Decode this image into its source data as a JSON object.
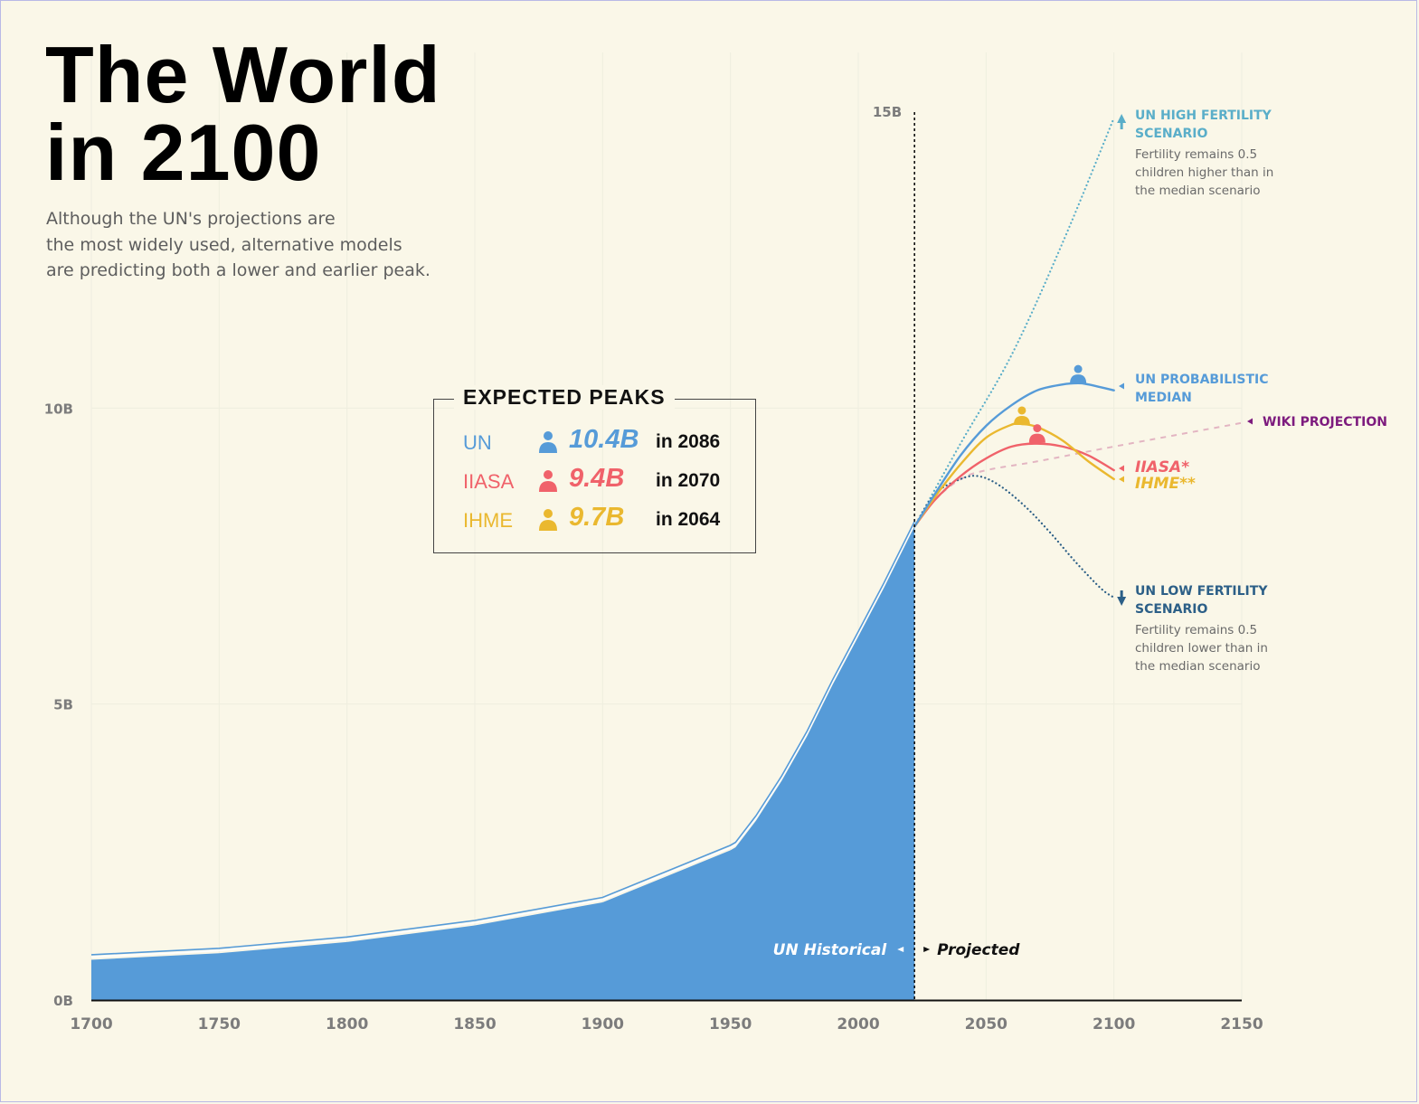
{
  "title_line1": "The World",
  "title_line2": "in 2100",
  "subtitle_lines": [
    "Although the UN's projections are",
    "the most widely used, alternative models",
    "are predicting both a lower and earlier peak."
  ],
  "colors": {
    "background": "#faf7e8",
    "un_blue": "#569bd8",
    "iiasa_red": "#f0626a",
    "ihme_yellow": "#eab82f",
    "high_fertility": "#5aaec9",
    "low_fertility": "#2c5f87",
    "wiki_purple": "#7d1b7e",
    "wiki_line": "#e3b5c2"
  },
  "expected_peaks": {
    "title": "EXPECTED PEAKS",
    "rows": [
      {
        "name": "UN",
        "value": "10.4B",
        "year": "in 2086",
        "color": "#569bd8"
      },
      {
        "name": "IIASA",
        "value": "9.4B",
        "year": "in 2070",
        "color": "#f0626a"
      },
      {
        "name": "IHME",
        "value": "9.7B",
        "year": "in 2064",
        "color": "#eab82f"
      }
    ]
  },
  "chart_data": {
    "type": "area",
    "title": "The World in 2100",
    "xlabel": "",
    "ylabel": "",
    "xlim": [
      1700,
      2150
    ],
    "ylim": [
      0,
      15
    ],
    "x_ticks": [
      1700,
      1750,
      1800,
      1850,
      1900,
      1950,
      2000,
      2050,
      2100,
      2150
    ],
    "x_tick_labels": [
      "1700",
      "1750",
      "1800",
      "1850",
      "1900",
      "1950",
      "2000",
      "2050",
      "2100",
      "2150"
    ],
    "y_ticks": [
      0,
      5,
      10,
      15
    ],
    "y_tick_labels": [
      "0B",
      "5B",
      "10B",
      "15B"
    ],
    "divider_year": 2022,
    "historical_label": "UN Historical",
    "projected_label": "Projected",
    "series": [
      {
        "name": "UN Historical",
        "kind": "area",
        "color": "#569bd8",
        "x": [
          1700,
          1750,
          1800,
          1850,
          1900,
          1950,
          1952,
          1960,
          1970,
          1980,
          1990,
          2000,
          2010,
          2022
        ],
        "y": [
          0.68,
          0.79,
          0.98,
          1.26,
          1.65,
          2.53,
          2.58,
          3.03,
          3.7,
          4.46,
          5.33,
          6.14,
          6.96,
          8.0
        ]
      },
      {
        "name": "UN PROBABILISTIC MEDIAN",
        "kind": "line",
        "color": "#569bd8",
        "x": [
          2022,
          2030,
          2040,
          2050,
          2060,
          2070,
          2080,
          2086,
          2090,
          2100
        ],
        "y": [
          8.0,
          8.55,
          9.2,
          9.7,
          10.05,
          10.3,
          10.4,
          10.42,
          10.4,
          10.3
        ]
      },
      {
        "name": "IIASA*",
        "kind": "line",
        "color": "#f0626a",
        "x": [
          2022,
          2030,
          2040,
          2050,
          2060,
          2070,
          2080,
          2090,
          2100
        ],
        "y": [
          8.0,
          8.45,
          8.85,
          9.15,
          9.35,
          9.4,
          9.35,
          9.2,
          8.95
        ]
      },
      {
        "name": "IHME**",
        "kind": "line",
        "color": "#eab82f",
        "x": [
          2022,
          2030,
          2040,
          2050,
          2060,
          2064,
          2070,
          2080,
          2090,
          2100
        ],
        "y": [
          8.0,
          8.5,
          9.05,
          9.5,
          9.72,
          9.73,
          9.68,
          9.45,
          9.1,
          8.8
        ]
      },
      {
        "name": "UN HIGH FERTILITY SCENARIO",
        "kind": "dotted",
        "color": "#5aaec9",
        "x": [
          2022,
          2040,
          2060,
          2080,
          2100
        ],
        "y": [
          8.0,
          9.4,
          10.9,
          12.8,
          14.9
        ]
      },
      {
        "name": "UN LOW FERTILITY SCENARIO",
        "kind": "dotted",
        "color": "#2c5f87",
        "x": [
          2022,
          2030,
          2040,
          2047,
          2055,
          2065,
          2075,
          2085,
          2095,
          2100
        ],
        "y": [
          8.0,
          8.55,
          8.8,
          8.85,
          8.7,
          8.35,
          7.9,
          7.4,
          6.95,
          6.8
        ]
      },
      {
        "name": "WIKI PROJECTION",
        "kind": "dashed",
        "color": "#e3b5c2",
        "x": [
          2022,
          2030,
          2040,
          2050,
          2070,
          2100,
          2150
        ],
        "y": [
          8.0,
          8.45,
          8.8,
          8.95,
          9.1,
          9.35,
          9.75
        ]
      }
    ],
    "peaks": [
      {
        "name": "UN",
        "year": 2086,
        "value": 10.4,
        "color": "#569bd8"
      },
      {
        "name": "IIASA",
        "year": 2070,
        "value": 9.4,
        "color": "#f0626a"
      },
      {
        "name": "IHME",
        "year": 2064,
        "value": 9.7,
        "color": "#eab82f"
      }
    ],
    "annotations": [
      {
        "id": "high",
        "title_lines": [
          "UN HIGH FERTILITY",
          "SCENARIO"
        ],
        "note_lines": [
          "Fertility remains 0.5",
          "children higher than in",
          "the median scenario"
        ],
        "color": "#5aaec9"
      },
      {
        "id": "median",
        "title_lines": [
          "UN PROBABILISTIC",
          "MEDIAN"
        ],
        "note_lines": [],
        "color": "#569bd8"
      },
      {
        "id": "wiki",
        "title_lines": [
          "WIKI PROJECTION"
        ],
        "note_lines": [],
        "color": "#7d1b7e"
      },
      {
        "id": "iiasa",
        "title_lines": [
          "IIASA*"
        ],
        "note_lines": [],
        "color": "#f0626a"
      },
      {
        "id": "ihme",
        "title_lines": [
          "IHME**"
        ],
        "note_lines": [],
        "color": "#eab82f"
      },
      {
        "id": "low",
        "title_lines": [
          "UN LOW FERTILITY",
          "SCENARIO"
        ],
        "note_lines": [
          "Fertility remains 0.5",
          "children lower than in",
          "the median scenario"
        ],
        "color": "#2c5f87"
      }
    ]
  }
}
